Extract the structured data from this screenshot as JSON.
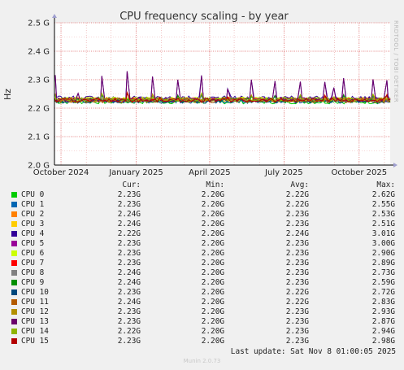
{
  "chart_data": {
    "type": "line",
    "title": "CPU frequency scaling - by year",
    "ylabel": "Hz",
    "side_label": "RRDTOOL / TOBI OETIKER",
    "ylim": [
      2.0,
      2.5
    ],
    "y_ticks": [
      {
        "v": 2.0,
        "label": "2.0 G"
      },
      {
        "v": 2.1,
        "label": "2.1 G"
      },
      {
        "v": 2.2,
        "label": "2.2 G"
      },
      {
        "v": 2.3,
        "label": "2.3 G"
      },
      {
        "v": 2.4,
        "label": "2.4 G"
      },
      {
        "v": 2.5,
        "label": "2.5 G"
      }
    ],
    "x_range": [
      "2024-09-23",
      "2025-11-08"
    ],
    "x_ticks": [
      {
        "date": "2024-10-01",
        "label": "October 2024"
      },
      {
        "date": "2025-01-01",
        "label": "January 2025"
      },
      {
        "date": "2025-04-01",
        "label": "April 2025"
      },
      {
        "date": "2025-07-01",
        "label": "July 2025"
      },
      {
        "date": "2025-10-01",
        "label": "October 2025"
      }
    ],
    "grid": true,
    "legend_columns": [
      "Cur:",
      "Min:",
      "Avg:",
      "Max:"
    ],
    "series": [
      {
        "name": "CPU 0",
        "color": "#00cc00",
        "cur": "2.23G",
        "min": "2.20G",
        "avg": "2.22G",
        "max": "2.62G",
        "base": 2.222
      },
      {
        "name": "CPU 1",
        "color": "#0066b3",
        "cur": "2.23G",
        "min": "2.20G",
        "avg": "2.22G",
        "max": "2.55G",
        "base": 2.225
      },
      {
        "name": "CPU 2",
        "color": "#ff8000",
        "cur": "2.24G",
        "min": "2.20G",
        "avg": "2.23G",
        "max": "2.53G",
        "base": 2.23
      },
      {
        "name": "CPU 3",
        "color": "#ffcc00",
        "cur": "2.24G",
        "min": "2.20G",
        "avg": "2.23G",
        "max": "2.51G",
        "base": 2.231
      },
      {
        "name": "CPU 4",
        "color": "#330099",
        "cur": "2.22G",
        "min": "2.20G",
        "avg": "2.24G",
        "max": "3.01G",
        "base": 2.236
      },
      {
        "name": "CPU 5",
        "color": "#990099",
        "cur": "2.23G",
        "min": "2.20G",
        "avg": "2.23G",
        "max": "3.00G",
        "base": 2.229
      },
      {
        "name": "CPU 6",
        "color": "#ccff00",
        "cur": "2.23G",
        "min": "2.20G",
        "avg": "2.23G",
        "max": "2.90G",
        "base": 2.232
      },
      {
        "name": "CPU 7",
        "color": "#ff0000",
        "cur": "2.23G",
        "min": "2.20G",
        "avg": "2.23G",
        "max": "2.89G",
        "base": 2.23
      },
      {
        "name": "CPU 8",
        "color": "#808080",
        "cur": "2.24G",
        "min": "2.20G",
        "avg": "2.23G",
        "max": "2.73G",
        "base": 2.228
      },
      {
        "name": "CPU 9",
        "color": "#008f00",
        "cur": "2.24G",
        "min": "2.20G",
        "avg": "2.23G",
        "max": "2.59G",
        "base": 2.227
      },
      {
        "name": "CPU 10",
        "color": "#00487d",
        "cur": "2.23G",
        "min": "2.20G",
        "avg": "2.22G",
        "max": "2.72G",
        "base": 2.224
      },
      {
        "name": "CPU 11",
        "color": "#b35a00",
        "cur": "2.24G",
        "min": "2.20G",
        "avg": "2.22G",
        "max": "2.83G",
        "base": 2.226
      },
      {
        "name": "CPU 12",
        "color": "#b38f00",
        "cur": "2.23G",
        "min": "2.20G",
        "avg": "2.23G",
        "max": "2.93G",
        "base": 2.229
      },
      {
        "name": "CPU 13",
        "color": "#6b006b",
        "cur": "2.23G",
        "min": "2.20G",
        "avg": "2.23G",
        "max": "2.87G",
        "base": 2.23
      },
      {
        "name": "CPU 14",
        "color": "#8fb300",
        "cur": "2.22G",
        "min": "2.20G",
        "avg": "2.23G",
        "max": "2.94G",
        "base": 2.231
      },
      {
        "name": "CPU 15",
        "color": "#b30000",
        "cur": "2.23G",
        "min": "2.20G",
        "avg": "2.23G",
        "max": "2.98G",
        "base": 2.228
      }
    ],
    "spikes": [
      {
        "date": "2024-09-24",
        "v": 2.316
      },
      {
        "date": "2024-10-22",
        "v": 2.252
      },
      {
        "date": "2024-11-20",
        "v": 2.313
      },
      {
        "date": "2024-12-21",
        "v": 2.33
      },
      {
        "date": "2025-01-21",
        "v": 2.311
      },
      {
        "date": "2025-02-21",
        "v": 2.3
      },
      {
        "date": "2025-03-22",
        "v": 2.315
      },
      {
        "date": "2025-04-23",
        "v": 2.268
      },
      {
        "date": "2025-05-22",
        "v": 2.3
      },
      {
        "date": "2025-06-20",
        "v": 2.295
      },
      {
        "date": "2025-07-21",
        "v": 2.293
      },
      {
        "date": "2025-08-20",
        "v": 2.292
      },
      {
        "date": "2025-08-31",
        "v": 2.272
      },
      {
        "date": "2025-09-12",
        "v": 2.305
      },
      {
        "date": "2025-10-18",
        "v": 2.301
      },
      {
        "date": "2025-11-04",
        "v": 2.298
      }
    ]
  },
  "footer": {
    "last_update": "Last update: Sat Nov  8 01:00:05 2025",
    "munin": "Munin 2.0.73"
  }
}
